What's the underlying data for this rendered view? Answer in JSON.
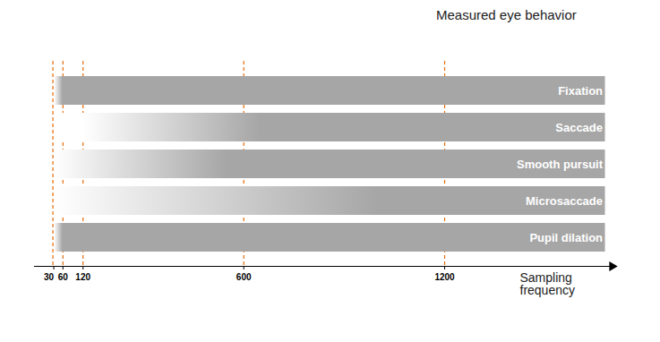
{
  "chart_data": {
    "type": "bar",
    "orientation": "horizontal",
    "title": "Measured eye behavior",
    "xlabel": "Sampling frequency",
    "categories": [
      "Fixation",
      "Saccade",
      "Smooth pursuit",
      "Microsaccade",
      "Pupil dilation"
    ],
    "start": [
      35,
      35,
      35,
      35,
      35
    ],
    "fade_from": [
      35,
      120,
      35,
      35,
      35
    ],
    "full_from": [
      60,
      650,
      550,
      1000,
      60
    ],
    "end": [
      1680,
      1680,
      1680,
      1680,
      1680
    ],
    "xlim": [
      -25,
      1700
    ],
    "xticks": [
      30,
      60,
      120,
      600,
      1200
    ],
    "grid": true,
    "color": "#a6a6a6",
    "tick_labels": "x"
  }
}
